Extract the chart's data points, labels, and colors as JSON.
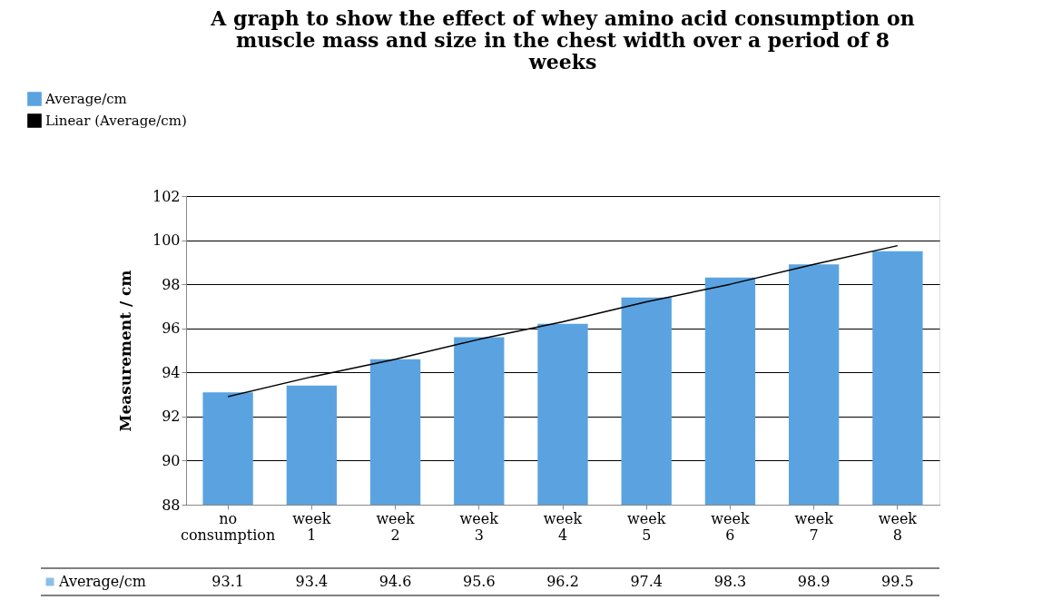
{
  "chart_data": {
    "type": "bar",
    "title": "A graph to show the effect of whey amino acid consumption on muscle mass and size in the chest width over a period of 8 weeks",
    "ylabel": "Measurement / cm",
    "categories": [
      "no consumption",
      "week 1",
      "week 2",
      "week 3",
      "week 4",
      "week 5",
      "week 6",
      "week 7",
      "week 8"
    ],
    "series": [
      {
        "name": "Average/cm",
        "color": "#5aa3e0",
        "values": [
          93.1,
          93.4,
          94.6,
          95.6,
          96.2,
          97.4,
          98.3,
          98.9,
          99.5
        ],
        "value_labels": [
          "93.1",
          "93.4",
          "94.6",
          "95.6",
          "96.2",
          "97.4",
          "98.3",
          "98.9",
          "99.5"
        ]
      },
      {
        "name": "Linear (Average/cm)",
        "type": "line",
        "color": "#000000",
        "values": [
          92.9,
          93.8,
          94.6,
          95.5,
          96.3,
          97.2,
          98.0,
          98.9,
          99.75
        ]
      }
    ],
    "ylim": [
      88,
      102
    ],
    "yticks": [
      88,
      90,
      92,
      94,
      96,
      98,
      100,
      102
    ],
    "grid": "y",
    "legend": "top left"
  }
}
